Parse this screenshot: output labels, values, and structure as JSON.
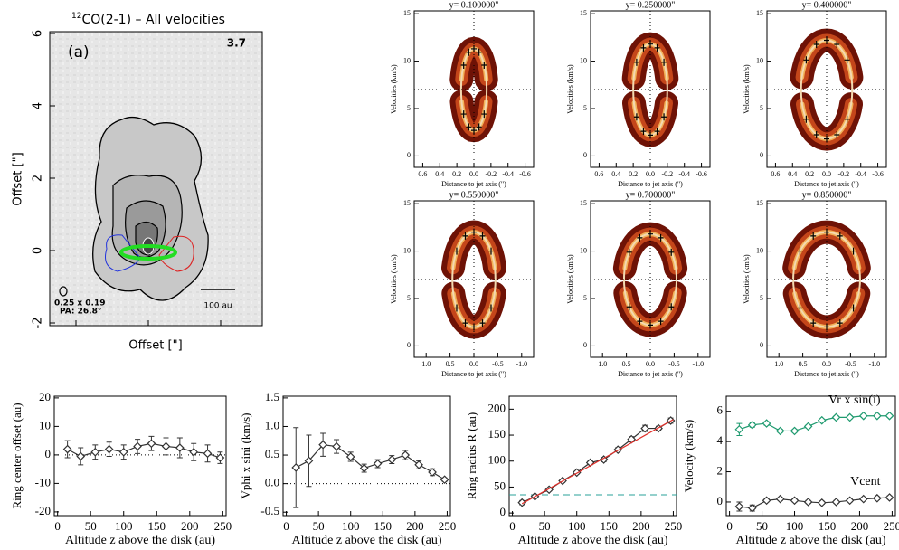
{
  "chart_data": [
    {
      "type": "map",
      "title_isotope": "12",
      "title": "CO(2-1) – All velocities",
      "panel_label": "(a)",
      "corner_value": "3.7",
      "beam": "0.25 x 0.19",
      "beam_pa": "PA: 26.8°",
      "scale_bar": "100 au",
      "xlabel": "Offset [\"]",
      "ylabel": "Offset [\"]",
      "ylim": [
        -2.075,
        6.05
      ],
      "yticks": [
        -2,
        0,
        2,
        4,
        6
      ]
    },
    {
      "type": "pv",
      "title": "y= 0.100000\"",
      "xlabel": "Distance to jet axis (\")",
      "ylabel": "Velocities (km/s)",
      "xlim": [
        0.7,
        -0.7
      ],
      "ylim": [
        -1.2,
        15.3
      ],
      "xticks": [
        0.6,
        0.4,
        0.2,
        {
          "value": 0,
          "label": "0.0"
        },
        -0.2,
        -0.4,
        -0.6
      ],
      "yticks": [
        0,
        5,
        10,
        15
      ],
      "ellipse": {
        "center": 7,
        "a": 0.15,
        "b": 4.3
      },
      "x": [
        0.12,
        0.06,
        0,
        -0.06,
        -0.12,
        0.12,
        0.06,
        0,
        -0.06,
        -0.12
      ],
      "values": [
        9.58,
        10.94,
        11.3,
        10.94,
        9.58,
        4.42,
        3.06,
        2.7,
        3.06,
        4.42
      ]
    },
    {
      "type": "pv",
      "title": "y= 0.250000\"",
      "xlabel": "Distance to jet axis (\")",
      "ylabel": "Velocities (km/s)",
      "xlim": [
        0.7,
        -0.7
      ],
      "ylim": [
        -1.2,
        15.3
      ],
      "xticks": [
        0.6,
        0.4,
        0.2,
        {
          "value": 0,
          "label": "0.0"
        },
        -0.2,
        -0.4,
        -0.6
      ],
      "yticks": [
        0,
        5,
        10,
        15
      ],
      "ellipse": {
        "center": 7,
        "a": 0.2,
        "b": 4.8
      },
      "x": [
        0.16,
        0.08,
        0,
        -0.08,
        -0.16,
        0.16,
        0.08,
        0,
        -0.08,
        -0.16
      ],
      "values": [
        9.88,
        11.4,
        11.8,
        11.4,
        9.88,
        4.12,
        2.6,
        2.2,
        2.6,
        4.12
      ]
    },
    {
      "type": "pv",
      "title": "y= 0.400000\"",
      "xlabel": "Distance to jet axis (\")",
      "ylabel": "Velocities (km/s)",
      "xlim": [
        0.7,
        -0.7
      ],
      "ylim": [
        -1.2,
        15.3
      ],
      "xticks": [
        0.6,
        0.4,
        0.2,
        {
          "value": 0,
          "label": "0.0"
        },
        -0.2,
        -0.4,
        -0.6
      ],
      "yticks": [
        0,
        5,
        10,
        15
      ],
      "ellipse": {
        "center": 7,
        "a": 0.3,
        "b": 5.2
      },
      "x": [
        0.24,
        0.12,
        0,
        -0.12,
        -0.24,
        0.24,
        0.12,
        0,
        -0.12,
        -0.24
      ],
      "values": [
        10.12,
        11.77,
        12.2,
        11.77,
        10.12,
        3.88,
        2.23,
        1.8,
        2.23,
        3.88
      ]
    },
    {
      "type": "pv",
      "title": "y= 0.550000\"",
      "xlabel": "Distance to jet axis (\")",
      "ylabel": "Velocities (km/s)",
      "xlim": [
        1.25,
        -1.25
      ],
      "ylim": [
        -1.2,
        15.3
      ],
      "xticks": [
        {
          "value": 1,
          "label": "1.0"
        },
        0.5,
        {
          "value": 0,
          "label": "0.0"
        },
        -0.5,
        {
          "value": -1,
          "label": "-1.0"
        }
      ],
      "yticks": [
        0,
        5,
        10,
        15
      ],
      "ellipse": {
        "center": 7,
        "a": 0.45,
        "b": 5
      },
      "x": [
        0.36,
        0.18,
        0,
        -0.18,
        -0.36,
        0.36,
        0.18,
        0,
        -0.18,
        -0.36
      ],
      "values": [
        10,
        11.59,
        12,
        11.59,
        10,
        4,
        2.41,
        2,
        2.41,
        4
      ]
    },
    {
      "type": "pv",
      "title": "y= 0.700000\"",
      "xlabel": "Distance to jet axis (\")",
      "ylabel": "Velocities (km/s)",
      "xlim": [
        1.25,
        -1.25
      ],
      "ylim": [
        -1.2,
        15.3
      ],
      "xticks": [
        {
          "value": 1,
          "label": "1.0"
        },
        0.5,
        {
          "value": 0,
          "label": "0.0"
        },
        -0.5,
        {
          "value": -1,
          "label": "-1.0"
        }
      ],
      "yticks": [
        0,
        5,
        10,
        15
      ],
      "ellipse": {
        "center": 7,
        "a": 0.55,
        "b": 4.8
      },
      "x": [
        0.44,
        0.22,
        0,
        -0.22,
        -0.44,
        0.44,
        0.22,
        0,
        -0.22,
        -0.44
      ],
      "values": [
        9.88,
        11.4,
        11.8,
        11.4,
        9.88,
        4.12,
        2.6,
        2.2,
        2.6,
        4.12
      ]
    },
    {
      "type": "pv",
      "title": "y= 0.850000\"",
      "xlabel": "Distance to jet axis (\")",
      "ylabel": "Velocities (km/s)",
      "xlim": [
        1.25,
        -1.25
      ],
      "ylim": [
        -1.2,
        15.3
      ],
      "xticks": [
        {
          "value": 1,
          "label": "1.0"
        },
        0.5,
        {
          "value": 0,
          "label": "0.0"
        },
        -0.5,
        {
          "value": -1,
          "label": "-1.0"
        }
      ],
      "yticks": [
        0,
        5,
        10,
        15
      ],
      "ellipse": {
        "center": 7,
        "a": 0.7,
        "b": 5
      },
      "x": [
        0.56,
        0.28,
        0,
        -0.28,
        -0.56,
        0.56,
        0.28,
        0,
        -0.28,
        -0.56
      ],
      "values": [
        10,
        11.59,
        12,
        11.59,
        10,
        4,
        2.41,
        2,
        2.41,
        4
      ]
    },
    {
      "type": "line",
      "xlabel": "Altitude z above the disk (au)",
      "ylabel": "Ring center offset (au)",
      "xlim": [
        -5,
        255
      ],
      "ylim": [
        -21.3,
        20.6
      ],
      "xticks": [
        0,
        50,
        100,
        150,
        200,
        250
      ],
      "yticks": [
        -20,
        -10,
        0,
        10,
        20
      ],
      "hlines": [
        {
          "value": 0,
          "color": "#000",
          "style": "dotted"
        }
      ],
      "series": [
        {
          "color": "#333",
          "x": [
            15,
            35,
            57,
            78,
            100,
            121,
            142,
            164,
            185,
            206,
            227,
            246
          ],
          "values": [
            2,
            -0.5,
            1,
            2,
            1,
            3,
            4,
            3,
            2.5,
            1,
            0.5,
            -1
          ],
          "errors": [
            3,
            3,
            2.5,
            2.5,
            2.5,
            2.5,
            2.5,
            3,
            3.5,
            3,
            3,
            2
          ]
        }
      ]
    },
    {
      "type": "line",
      "xlabel": "Altitude z above the disk (au)",
      "ylabel": "Vphi x sini (km/s)",
      "xlim": [
        -5,
        255
      ],
      "ylim": [
        -0.56,
        1.53
      ],
      "xticks": [
        0,
        50,
        100,
        150,
        200,
        250
      ],
      "yticks": [
        -0.5,
        {
          "value": 0,
          "label": "0.0"
        },
        0.5,
        {
          "value": 1,
          "label": "1.0"
        },
        1.5
      ],
      "hlines": [
        {
          "value": 0,
          "color": "#000",
          "style": "dotted"
        }
      ],
      "series": [
        {
          "color": "#333",
          "x": [
            15,
            35,
            57,
            78,
            100,
            121,
            142,
            164,
            185,
            206,
            227,
            246
          ],
          "values": [
            0.28,
            0.4,
            0.68,
            0.65,
            0.47,
            0.27,
            0.35,
            0.42,
            0.5,
            0.33,
            0.2,
            0.07
          ],
          "errors": [
            0.7,
            0.45,
            0.2,
            0.12,
            0.08,
            0.07,
            0.07,
            0.07,
            0.08,
            0.07,
            0.06,
            0.03
          ]
        }
      ]
    },
    {
      "type": "line",
      "xlabel": "Altitude z above the disk (au)",
      "ylabel": "Ring radius R (au)",
      "xlim": [
        -5,
        255
      ],
      "ylim": [
        -5,
        225
      ],
      "xticks": [
        0,
        50,
        100,
        150,
        200,
        250
      ],
      "yticks": [
        0,
        50,
        100,
        150,
        200
      ],
      "hlines": [
        {
          "value": 35,
          "color": "#2aa198",
          "style": "dashed"
        }
      ],
      "series": [
        {
          "color": "#333",
          "x": [
            15,
            35,
            57,
            78,
            100,
            121,
            142,
            164,
            185,
            206,
            227,
            246
          ],
          "values": [
            20,
            32,
            45,
            62,
            78,
            97,
            103,
            122,
            142,
            163,
            163,
            178
          ],
          "errors": [
            4,
            3,
            3,
            3,
            3,
            4,
            4,
            4,
            5,
            6,
            4,
            5
          ]
        },
        {
          "color": "#e0302a",
          "markers": false,
          "x": [
            15,
            250
          ],
          "values": [
            18,
            180
          ]
        }
      ]
    },
    {
      "type": "line",
      "xlabel": "Altitude z above the disk (au)",
      "ylabel": "Velocity (km/s)",
      "xlim": [
        -5,
        255
      ],
      "ylim": [
        -0.9,
        7
      ],
      "xticks": [
        0,
        50,
        100,
        150,
        200,
        250
      ],
      "yticks": [
        0,
        2,
        4,
        6
      ],
      "hlines": [],
      "series": [
        {
          "name": "Vr x sin(i)",
          "color": "#1f9a6f",
          "x": [
            15,
            35,
            57,
            78,
            100,
            121,
            142,
            164,
            185,
            206,
            227,
            246
          ],
          "values": [
            4.8,
            5.1,
            5.2,
            4.7,
            4.7,
            5.0,
            5.4,
            5.6,
            5.6,
            5.7,
            5.7,
            5.7
          ],
          "errors": [
            0.4,
            0.15,
            0.12,
            0.1,
            0.1,
            0.1,
            0.1,
            0.1,
            0.1,
            0.1,
            0.1,
            0.1
          ]
        },
        {
          "name": "Vcent",
          "color": "#333",
          "x": [
            15,
            35,
            57,
            78,
            100,
            121,
            142,
            164,
            185,
            206,
            227,
            246
          ],
          "values": [
            -0.3,
            -0.4,
            0.1,
            0.2,
            0.1,
            0.0,
            -0.05,
            0.0,
            0.1,
            0.2,
            0.25,
            0.3
          ],
          "errors": [
            0.3,
            0.2,
            0.1,
            0.1,
            0.1,
            0.1,
            0.1,
            0.1,
            0.1,
            0.1,
            0.1,
            0.1
          ]
        }
      ]
    }
  ]
}
